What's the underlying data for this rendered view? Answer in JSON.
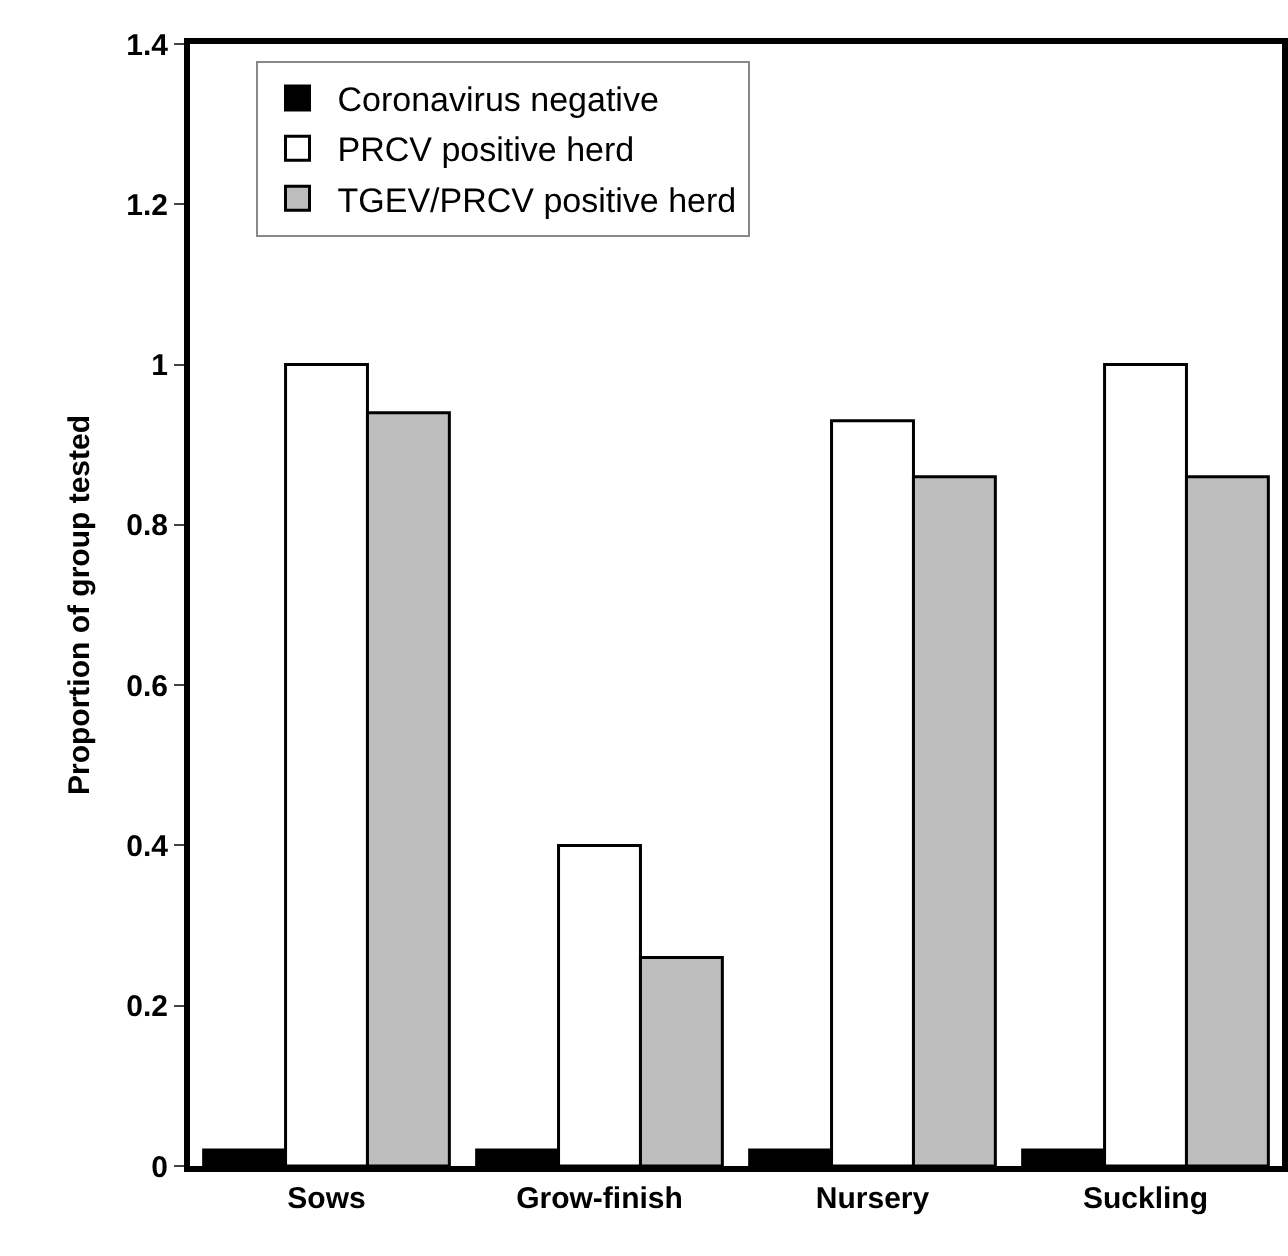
{
  "chart_data": {
    "type": "bar",
    "ylabel": "Proportion of group tested",
    "categories": [
      "Sows",
      "Grow-finish",
      "Nursery",
      "Suckling"
    ],
    "series": [
      {
        "name": "Coronavirus negative",
        "color": "#000000",
        "values": [
          0.02,
          0.02,
          0.02,
          0.02
        ]
      },
      {
        "name": "PRCV positive herd",
        "color": "#ffffff",
        "values": [
          1.0,
          0.4,
          0.93,
          1.0
        ]
      },
      {
        "name": "TGEV/PRCV positive herd",
        "color": "#bdbdbd",
        "values": [
          0.94,
          0.26,
          0.86,
          0.86
        ]
      }
    ],
    "ylim": [
      0,
      1.4
    ],
    "yticks": [
      0,
      0.2,
      0.4,
      0.6,
      0.8,
      1,
      1.2,
      1.4
    ],
    "legend": "top"
  }
}
